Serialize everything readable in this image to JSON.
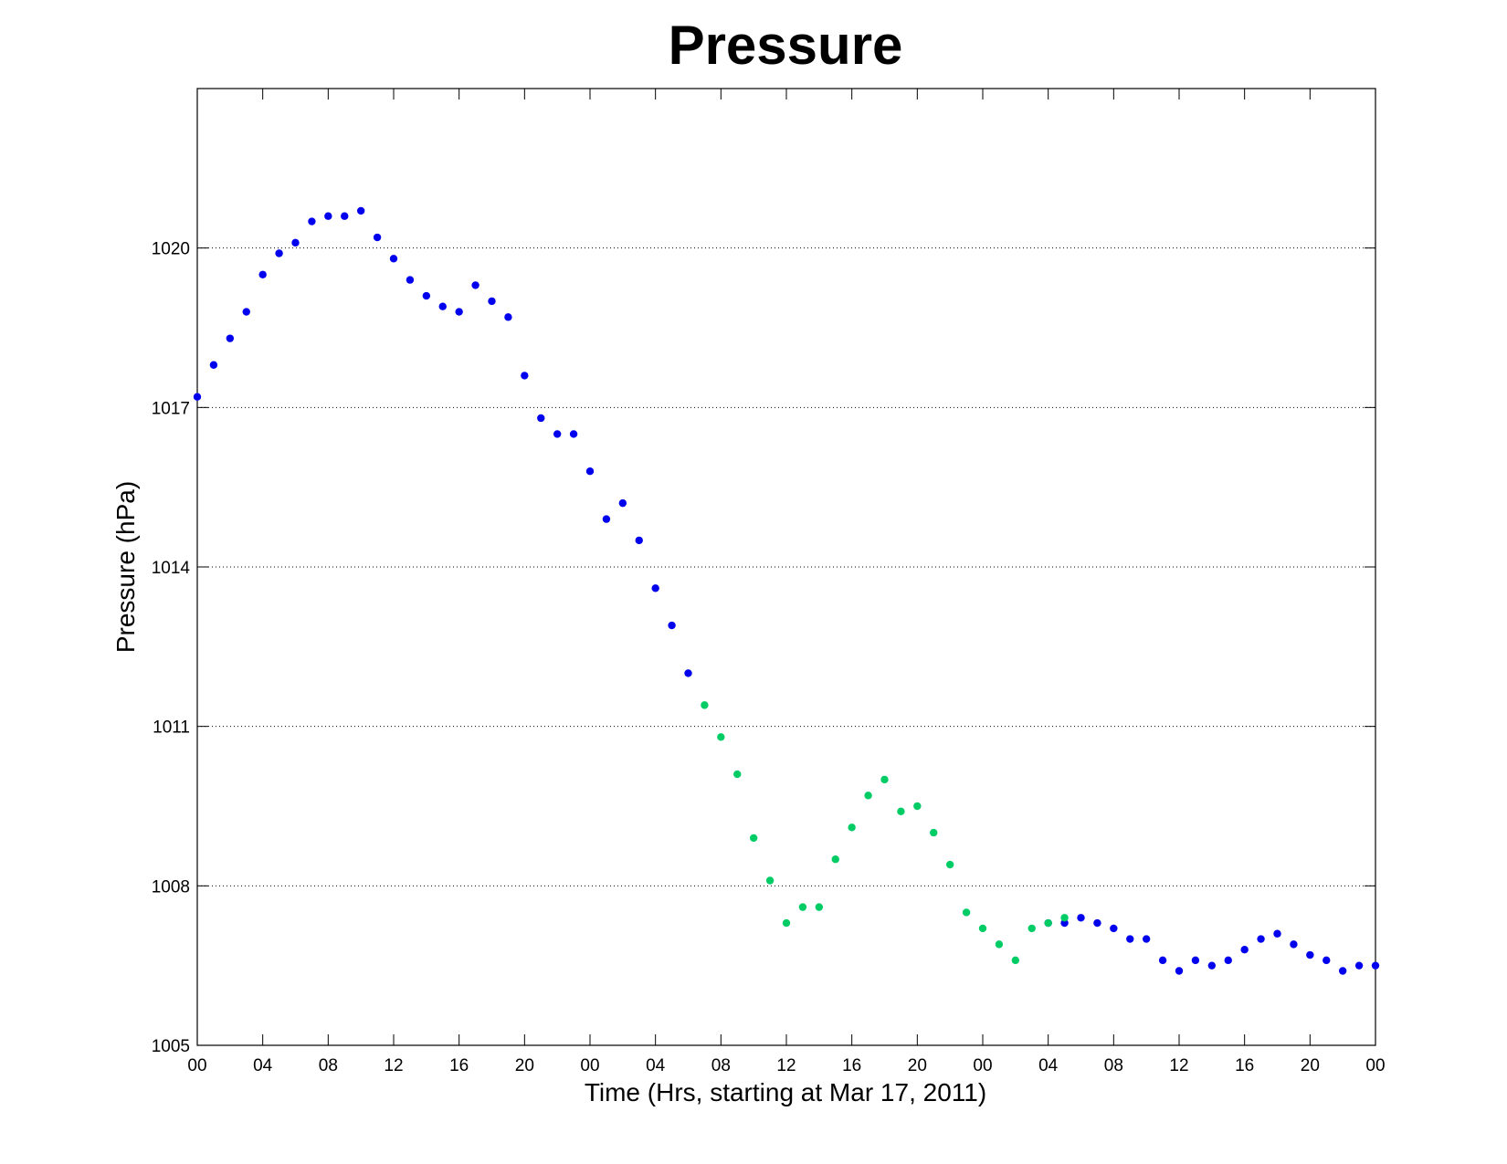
{
  "chart_data": {
    "type": "scatter",
    "title": "Pressure",
    "xlabel": "Time (Hrs, starting at Mar 17, 2011)",
    "ylabel": "Pressure (hPa)",
    "xlim": [
      0,
      72
    ],
    "ylim": [
      1005,
      1023
    ],
    "x_ticks": [
      0,
      4,
      8,
      12,
      16,
      20,
      24,
      28,
      32,
      36,
      40,
      44,
      48,
      52,
      56,
      60,
      64,
      68,
      72
    ],
    "x_tick_labels": [
      "00",
      "04",
      "08",
      "12",
      "16",
      "20",
      "00",
      "04",
      "08",
      "12",
      "16",
      "20",
      "00",
      "04",
      "08",
      "12",
      "16",
      "20",
      "00"
    ],
    "y_ticks": [
      1005,
      1008,
      1011,
      1014,
      1017,
      1020
    ],
    "y_tick_labels": [
      "1005",
      "1008",
      "1011",
      "1014",
      "1017",
      "1020"
    ],
    "grid": "horizontal-dotted",
    "legend": "none",
    "series": [
      {
        "color": "#0000ee",
        "points": [
          [
            0,
            1017.2
          ],
          [
            1,
            1017.8
          ],
          [
            2,
            1018.3
          ],
          [
            3,
            1018.8
          ],
          [
            4,
            1019.5
          ],
          [
            5,
            1019.9
          ],
          [
            6,
            1020.1
          ],
          [
            7,
            1020.5
          ],
          [
            8,
            1020.6
          ],
          [
            9,
            1020.6
          ],
          [
            10,
            1020.7
          ],
          [
            11,
            1020.2
          ],
          [
            12,
            1019.8
          ],
          [
            13,
            1019.4
          ],
          [
            14,
            1019.1
          ],
          [
            15,
            1018.9
          ],
          [
            16,
            1018.8
          ],
          [
            17,
            1019.3
          ],
          [
            18,
            1019.0
          ],
          [
            19,
            1018.7
          ],
          [
            20,
            1017.6
          ],
          [
            21,
            1016.8
          ],
          [
            22,
            1016.5
          ],
          [
            23,
            1016.5
          ],
          [
            24,
            1015.8
          ],
          [
            25,
            1014.9
          ],
          [
            26,
            1015.2
          ],
          [
            27,
            1014.5
          ],
          [
            28,
            1013.6
          ],
          [
            29,
            1012.9
          ],
          [
            30,
            1012.0
          ],
          [
            52,
            1007.3
          ],
          [
            53,
            1007.3
          ],
          [
            54,
            1007.4
          ],
          [
            55,
            1007.3
          ],
          [
            56,
            1007.2
          ],
          [
            57,
            1007.0
          ],
          [
            58,
            1007.0
          ],
          [
            59,
            1006.6
          ],
          [
            60,
            1006.4
          ],
          [
            61,
            1006.6
          ],
          [
            62,
            1006.5
          ],
          [
            63,
            1006.6
          ],
          [
            64,
            1006.8
          ],
          [
            65,
            1007.0
          ],
          [
            66,
            1007.1
          ],
          [
            67,
            1006.9
          ],
          [
            68,
            1006.7
          ],
          [
            69,
            1006.6
          ],
          [
            70,
            1006.4
          ],
          [
            71,
            1006.5
          ],
          [
            72,
            1006.5
          ]
        ]
      },
      {
        "color": "#00cc66",
        "points": [
          [
            31,
            1011.4
          ],
          [
            32,
            1010.8
          ],
          [
            33,
            1010.1
          ],
          [
            34,
            1008.9
          ],
          [
            35,
            1008.1
          ],
          [
            36,
            1007.3
          ],
          [
            37,
            1007.6
          ],
          [
            38,
            1007.6
          ],
          [
            39,
            1008.5
          ],
          [
            40,
            1009.1
          ],
          [
            41,
            1009.7
          ],
          [
            42,
            1010.0
          ],
          [
            43,
            1009.4
          ],
          [
            44,
            1009.5
          ],
          [
            45,
            1009.0
          ],
          [
            46,
            1008.4
          ],
          [
            47,
            1007.5
          ],
          [
            48,
            1007.2
          ],
          [
            49,
            1006.9
          ],
          [
            50,
            1006.6
          ],
          [
            51,
            1007.2
          ],
          [
            52,
            1007.3
          ],
          [
            53,
            1007.4
          ]
        ]
      }
    ]
  }
}
